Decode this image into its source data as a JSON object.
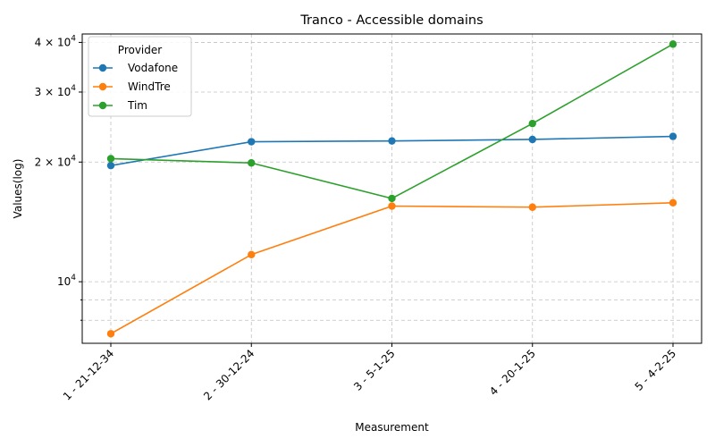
{
  "chart_data": {
    "type": "line",
    "title": "Tranco - Accessible domains",
    "xlabel": "Measurement",
    "ylabel": "Values(log)",
    "yscale": "log",
    "ylim": [
      7000,
      42000
    ],
    "grid": true,
    "categories": [
      "1 - 21-12-34",
      "2 - 30-12-24",
      "3 - 5-1-25",
      "4 - 20-1-25",
      "5 - 4-2-25"
    ],
    "y_ticks": [
      {
        "value": 10000,
        "base": "10",
        "exp": "4"
      },
      {
        "value": 20000,
        "base": "2 × 10",
        "exp": "4"
      },
      {
        "value": 30000,
        "base": "3 × 10",
        "exp": "4"
      },
      {
        "value": 40000,
        "base": "4 × 10",
        "exp": "4"
      }
    ],
    "minor_grid_values": [
      8000,
      9000
    ],
    "legend": {
      "title": "Provider",
      "position": "upper-left"
    },
    "series": [
      {
        "name": "Vodafone",
        "color": "#1f77b4",
        "values": [
          19600,
          22500,
          22600,
          22800,
          23200
        ]
      },
      {
        "name": "WindTre",
        "color": "#ff7f0e",
        "values": [
          7400,
          11700,
          15500,
          15400,
          15800
        ]
      },
      {
        "name": "Tim",
        "color": "#2ca02c",
        "values": [
          20400,
          19900,
          16200,
          25000,
          39600
        ]
      }
    ]
  }
}
